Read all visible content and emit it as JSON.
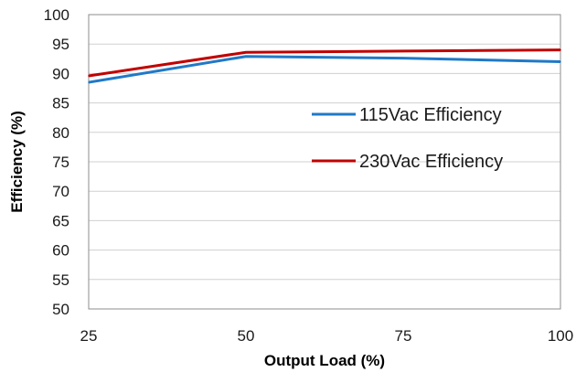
{
  "chart_data": {
    "type": "line",
    "xlabel": "Output Load (%)",
    "ylabel": "Efficiency (%)",
    "x": [
      25,
      50,
      75,
      100
    ],
    "xlim": [
      25,
      100
    ],
    "ylim": [
      50,
      100
    ],
    "x_ticks": [
      "25",
      "50",
      "75",
      "100"
    ],
    "y_ticks": [
      "100",
      "95",
      "90",
      "85",
      "80",
      "75",
      "70",
      "65",
      "60",
      "55",
      "50"
    ],
    "grid": true,
    "legend_position": "right",
    "series": [
      {
        "name": "115Vac Efficiency",
        "color": "#2079c7",
        "values": [
          88.5,
          92.9,
          92.6,
          92.0
        ]
      },
      {
        "name": "230Vac Efficiency",
        "color": "#c00000",
        "values": [
          89.6,
          93.6,
          93.8,
          94.0
        ]
      }
    ]
  }
}
